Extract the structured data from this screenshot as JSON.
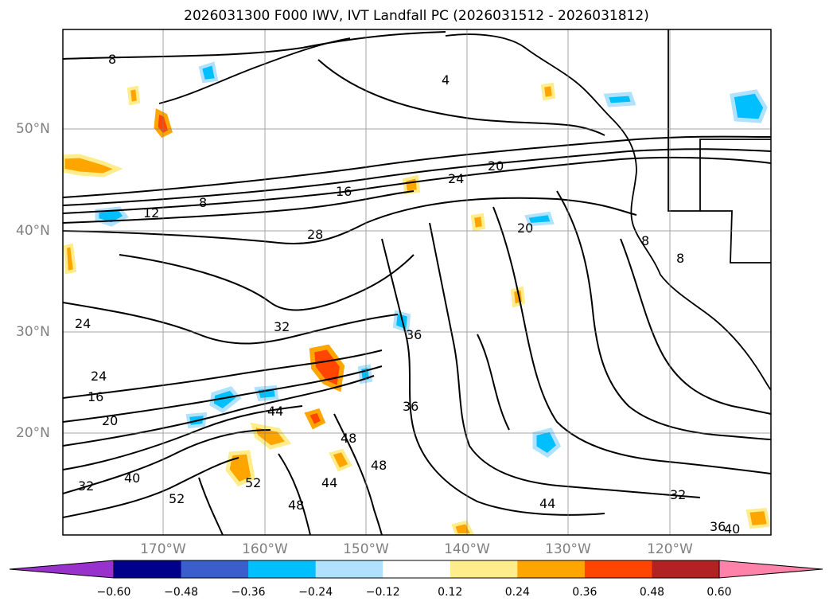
{
  "title": "2026031300 F000 IWV, IVT Landfall PC (2026031512 - 2026031812)",
  "lat_labels": [
    "50°N",
    "40°N",
    "30°N",
    "20°N"
  ],
  "lon_labels": [
    "170°W",
    "160°W",
    "150°W",
    "140°W",
    "130°W",
    "120°W"
  ],
  "colorbar": {
    "ticks": [
      "−0.60",
      "−0.48",
      "−0.36",
      "−0.24",
      "−0.12",
      "0.12",
      "0.24",
      "0.36",
      "0.48",
      "0.60"
    ],
    "colors": [
      "#9932cc",
      "#00008b",
      "#3a5fcd",
      "#00bfff",
      "#b0e2ff",
      "#ffffff",
      "#ffec8b",
      "#ffa500",
      "#ff4500",
      "#b22222",
      "#ff82ab"
    ]
  },
  "contour_labels": [
    "8",
    "4",
    "20",
    "24",
    "16",
    "8",
    "12",
    "28",
    "20",
    "32",
    "36",
    "36",
    "24",
    "24",
    "16",
    "20",
    "44",
    "48",
    "48",
    "52",
    "52",
    "40",
    "32",
    "44",
    "48",
    "44",
    "32",
    "36",
    "40",
    "8",
    "8"
  ]
}
